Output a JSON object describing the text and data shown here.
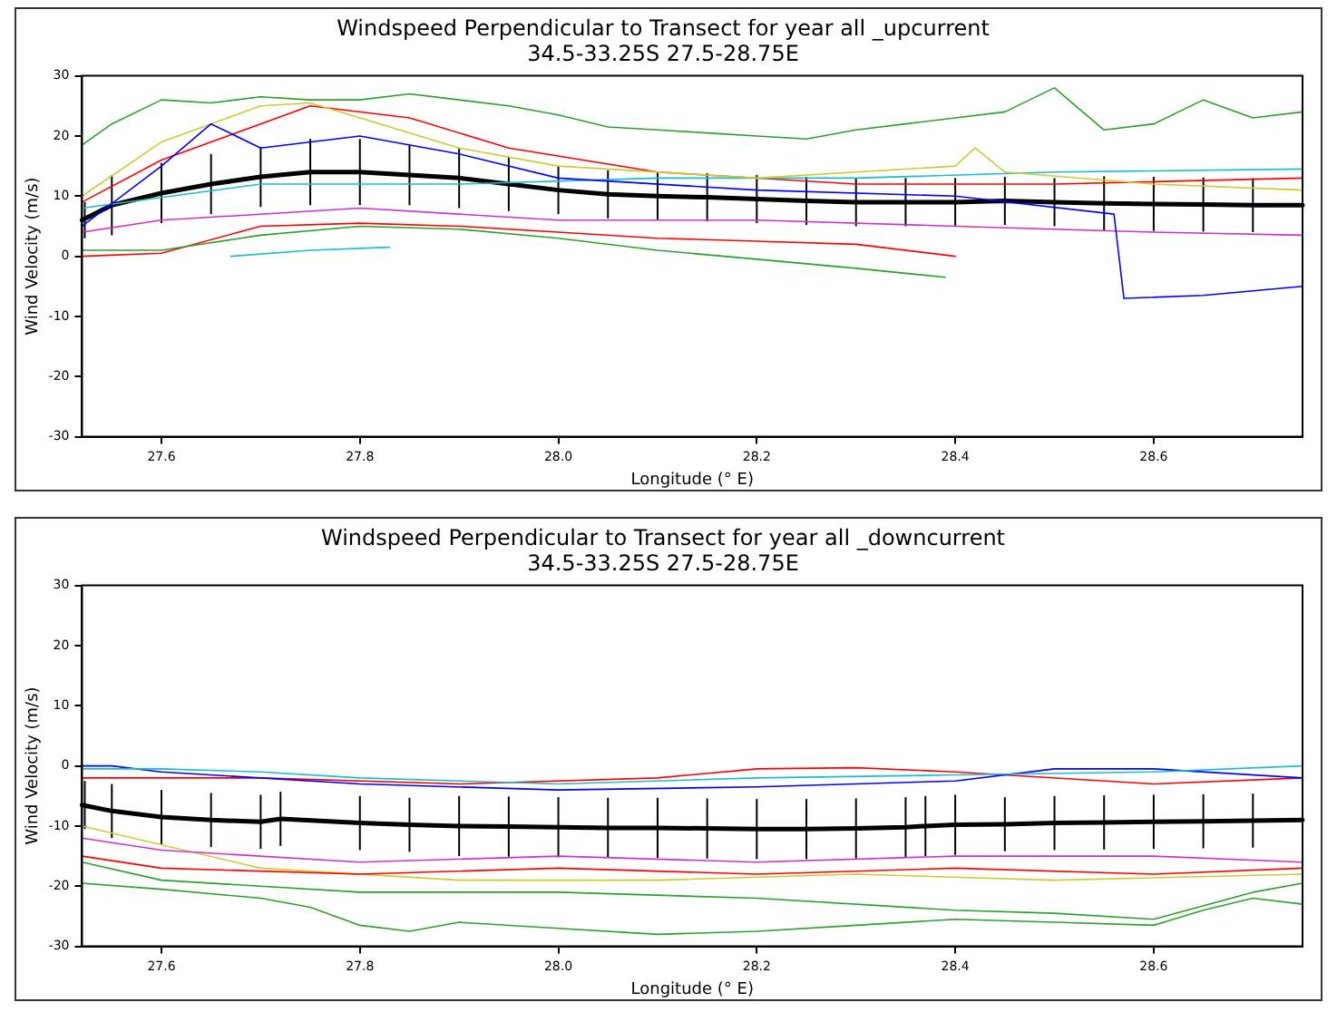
{
  "chart_data": [
    {
      "type": "line",
      "title": "Windspeed Perpendicular to Transect for year all _upcurrent",
      "subtitle": "34.5-33.25S 27.5-28.75E",
      "xlabel": "Longitude (° E)",
      "ylabel": "Wind Velocity (m/s)",
      "xlim": [
        27.52,
        28.75
      ],
      "ylim": [
        -30,
        30
      ],
      "xticks": [
        27.6,
        27.8,
        {
          "value": 28,
          "label": "28.0"
        },
        28.2,
        28.4,
        28.6
      ],
      "yticks": [
        -30,
        -20,
        -10,
        0,
        10,
        20,
        30
      ],
      "grid": false,
      "legend": false,
      "marker": "none",
      "line_style": "solid",
      "series": [
        {
          "color": "#2ca02c",
          "x": [
            27.52,
            27.55,
            27.6,
            27.65,
            27.7,
            27.75,
            27.8,
            27.85,
            27.9,
            27.95,
            28.0,
            28.05,
            28.1,
            28.15,
            28.2,
            28.25,
            28.3,
            28.35,
            28.4,
            28.45,
            28.5,
            28.55,
            28.6,
            28.65,
            28.7,
            28.75
          ],
          "values": [
            18.5,
            22,
            26,
            25.5,
            26.5,
            26,
            26,
            27,
            26,
            25,
            23.5,
            21.5,
            21,
            20.5,
            20,
            19.5,
            21,
            22,
            23,
            24,
            28,
            21,
            22,
            26,
            23,
            24
          ]
        },
        {
          "color": "#0000ff",
          "x": [
            27.52,
            27.6,
            27.65,
            27.7,
            27.8,
            27.9,
            28.0,
            28.2,
            28.4,
            28.56,
            28.57,
            28.65,
            28.75
          ],
          "values": [
            5,
            15,
            22,
            18,
            20,
            17,
            13,
            11,
            10,
            7,
            -7,
            -6.5,
            -5
          ]
        },
        {
          "color": "#2ca02c",
          "x": [
            27.52,
            27.6,
            27.7,
            27.8,
            27.9,
            28.0,
            28.1,
            28.2,
            28.3,
            28.39
          ],
          "values": [
            1,
            1,
            3.5,
            5,
            4.5,
            3,
            1,
            -0.5,
            -2,
            -3.5
          ]
        },
        {
          "color": "#17becf",
          "x": [
            27.67,
            27.75,
            27.83
          ],
          "values": [
            0,
            1,
            1.5
          ]
        },
        {
          "color": "#ff0000",
          "x": [
            27.52,
            27.6,
            27.7,
            27.8,
            27.9,
            28.0,
            28.1,
            28.2,
            28.3,
            28.4
          ],
          "values": [
            0,
            0.5,
            5,
            5.5,
            5,
            4,
            3,
            2.5,
            2,
            0
          ]
        },
        {
          "color": "#cccc33",
          "x": [
            27.52,
            27.6,
            27.65,
            27.7,
            27.75,
            27.8,
            27.9,
            28.0,
            28.2,
            28.4,
            28.42,
            28.45,
            28.6,
            28.75
          ],
          "values": [
            10,
            19,
            22,
            25,
            25.5,
            23,
            18,
            15,
            13,
            15,
            18,
            14,
            12,
            11
          ]
        },
        {
          "color": "#17becf",
          "x": [
            27.52,
            27.7,
            27.9,
            28.1,
            28.3,
            28.5,
            28.75
          ],
          "values": [
            8,
            12,
            12,
            13,
            13,
            14,
            14.5
          ]
        },
        {
          "color": "#ff0000",
          "x": [
            27.52,
            27.6,
            27.75,
            27.85,
            27.95,
            28.1,
            28.3,
            28.5,
            28.75
          ],
          "values": [
            9,
            16,
            25,
            23,
            18,
            14,
            12,
            12,
            13
          ]
        },
        {
          "color": "#cc33cc",
          "x": [
            27.52,
            27.6,
            27.8,
            28.0,
            28.2,
            28.4,
            28.6,
            28.75
          ],
          "values": [
            4,
            6,
            8,
            6,
            6,
            5,
            4,
            3.5
          ]
        },
        {
          "color": "#000000",
          "x": [
            27.52,
            27.55,
            27.6,
            27.65,
            27.7,
            27.75,
            27.8,
            27.85,
            27.9,
            27.95,
            28.0,
            28.05,
            28.1,
            28.15,
            28.2,
            28.25,
            28.3,
            28.35,
            28.4,
            28.45,
            28.5,
            28.55,
            28.6,
            28.65,
            28.7,
            28.75
          ],
          "values": [
            6,
            8.5,
            10.5,
            12,
            13.2,
            14,
            14,
            13.5,
            13,
            12,
            11,
            10.3,
            10,
            9.8,
            9.5,
            9.2,
            9,
            9,
            9,
            9.2,
            9,
            8.8,
            8.7,
            8.6,
            8.5,
            8.5
          ],
          "errors": [
            3,
            5,
            5,
            5,
            5,
            5.5,
            5.5,
            5,
            5,
            4.5,
            4,
            4,
            4,
            4,
            4,
            4,
            4,
            4,
            4,
            4,
            4,
            4.5,
            4.5,
            4.5,
            4.5,
            4.5
          ]
        }
      ]
    },
    {
      "type": "line",
      "title": "Windspeed Perpendicular to Transect for year all _downcurrent",
      "subtitle": "34.5-33.25S 27.5-28.75E",
      "xlabel": "Longitude (° E)",
      "ylabel": "Wind Velocity (m/s)",
      "xlim": [
        27.52,
        28.75
      ],
      "ylim": [
        -30,
        30
      ],
      "xticks": [
        27.6,
        27.8,
        {
          "value": 28,
          "label": "28.0"
        },
        28.2,
        28.4,
        28.6
      ],
      "yticks": [
        -30,
        -20,
        -10,
        0,
        10,
        20,
        30
      ],
      "grid": false,
      "legend": false,
      "marker": "none",
      "line_style": "solid",
      "series": [
        {
          "color": "#2ca02c",
          "x": [
            27.52,
            27.6,
            27.7,
            27.75,
            27.8,
            27.85,
            27.9,
            28.0,
            28.1,
            28.2,
            28.3,
            28.4,
            28.5,
            28.6,
            28.65,
            28.7,
            28.75
          ],
          "values": [
            -19.5,
            -20.5,
            -22,
            -23.5,
            -26.5,
            -27.5,
            -26,
            -27,
            -28,
            -27.5,
            -26.5,
            -25.5,
            -26,
            -26.5,
            -24,
            -22,
            -23
          ]
        },
        {
          "color": "#2ca02c",
          "x": [
            27.52,
            27.6,
            27.7,
            27.8,
            27.9,
            28.0,
            28.2,
            28.4,
            28.5,
            28.6,
            28.7,
            28.75
          ],
          "values": [
            -16,
            -19,
            -20,
            -21,
            -21,
            -21,
            -22,
            -24,
            -24.5,
            -25.5,
            -21,
            -19.5
          ]
        },
        {
          "color": "#17becf",
          "x": [
            27.52,
            27.6,
            27.7,
            27.8,
            28.0,
            28.2,
            28.4,
            28.6,
            28.75
          ],
          "values": [
            -0.5,
            -0.5,
            -1,
            -2,
            -3,
            -2,
            -1.5,
            -1,
            0
          ]
        },
        {
          "color": "#0000ff",
          "x": [
            27.52,
            27.55,
            27.6,
            27.8,
            28.0,
            28.2,
            28.4,
            28.5,
            28.6,
            28.75
          ],
          "values": [
            0,
            0,
            -1,
            -3,
            -4,
            -3.5,
            -2.5,
            -0.5,
            -0.5,
            -2
          ]
        },
        {
          "color": "#ff0000",
          "x": [
            27.52,
            27.6,
            27.8,
            28.0,
            28.2,
            28.4,
            28.6,
            28.75
          ],
          "values": [
            -15,
            -17,
            -18,
            -17,
            -18,
            -17,
            -18,
            -17
          ]
        },
        {
          "color": "#cc33cc",
          "x": [
            27.52,
            27.6,
            27.8,
            28.0,
            28.2,
            28.4,
            28.6,
            28.75
          ],
          "values": [
            -12,
            -14,
            -16,
            -15,
            -16,
            -15,
            -15,
            -16
          ]
        },
        {
          "color": "#cccc33",
          "x": [
            27.52,
            27.7,
            27.9,
            28.1,
            28.3,
            28.5,
            28.75
          ],
          "values": [
            -10,
            -17,
            -19,
            -19,
            -18,
            -19,
            -18
          ]
        },
        {
          "color": "#ff0000",
          "x": [
            27.52,
            27.7,
            27.9,
            28.1,
            28.2,
            28.3,
            28.4,
            28.6,
            28.75
          ],
          "values": [
            -2,
            -2,
            -3,
            -2,
            -0.5,
            -0.3,
            -1,
            -3,
            -2
          ]
        },
        {
          "color": "#000000",
          "x": [
            27.52,
            27.55,
            27.6,
            27.65,
            27.7,
            27.72,
            27.8,
            27.85,
            27.9,
            27.95,
            28.0,
            28.05,
            28.1,
            28.15,
            28.2,
            28.25,
            28.3,
            28.35,
            28.37,
            28.4,
            28.45,
            28.5,
            28.55,
            28.6,
            28.65,
            28.7,
            28.75
          ],
          "values": [
            -6.5,
            -7.5,
            -8.5,
            -9,
            -9.3,
            -8.8,
            -9.5,
            -9.8,
            -10,
            -10.1,
            -10.2,
            -10.3,
            -10.3,
            -10.4,
            -10.5,
            -10.5,
            -10.4,
            -10.2,
            -10,
            -9.8,
            -9.7,
            -9.5,
            -9.4,
            -9.3,
            -9.2,
            -9.1,
            -9
          ],
          "errors": [
            4,
            4.5,
            4.5,
            4.5,
            4.5,
            4.5,
            4.5,
            4.5,
            5,
            5,
            5,
            5,
            5,
            5,
            5,
            5,
            5,
            5,
            5,
            5,
            4.5,
            4.5,
            4.5,
            4.5,
            4.5,
            4.5,
            4.5
          ]
        }
      ]
    }
  ]
}
